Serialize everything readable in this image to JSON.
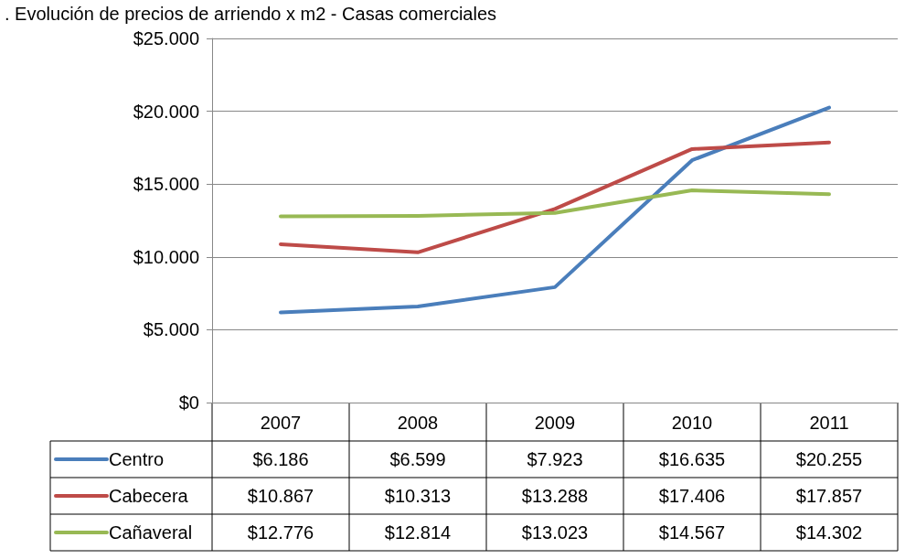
{
  "chart_data": {
    "type": "line",
    "title": ". Evolución de precios de arriendo x m2 - Casas comerciales",
    "categories": [
      "2007",
      "2008",
      "2009",
      "2010",
      "2011"
    ],
    "series": [
      {
        "name": "Centro",
        "color": "#4a7ebb",
        "values": [
          6186,
          6599,
          7923,
          16635,
          20255
        ],
        "value_labels": [
          "$6.186",
          "$6.599",
          "$7.923",
          "$16.635",
          "$20.255"
        ]
      },
      {
        "name": "Cabecera",
        "color": "#be4b48",
        "values": [
          10867,
          10313,
          13288,
          17406,
          17857
        ],
        "value_labels": [
          "$10.867",
          "$10.313",
          "$13.288",
          "$17.406",
          "$17.857"
        ]
      },
      {
        "name": "Cañaveral",
        "color": "#98b954",
        "values": [
          12776,
          12814,
          13023,
          14567,
          14302
        ],
        "value_labels": [
          "$12.776",
          "$12.814",
          "$13.023",
          "$14.567",
          "$14.302"
        ]
      }
    ],
    "ylim": [
      0,
      25000
    ],
    "yticks": [
      {
        "value": 0,
        "label": "$0"
      },
      {
        "value": 5000,
        "label": "$5.000"
      },
      {
        "value": 10000,
        "label": "$10.000"
      },
      {
        "value": 15000,
        "label": "$15.000"
      },
      {
        "value": 20000,
        "label": "$20.000"
      },
      {
        "value": 25000,
        "label": "$25.000"
      }
    ],
    "grid": "y",
    "legend": "bottom left",
    "marker": "none",
    "line_style": "solid"
  }
}
